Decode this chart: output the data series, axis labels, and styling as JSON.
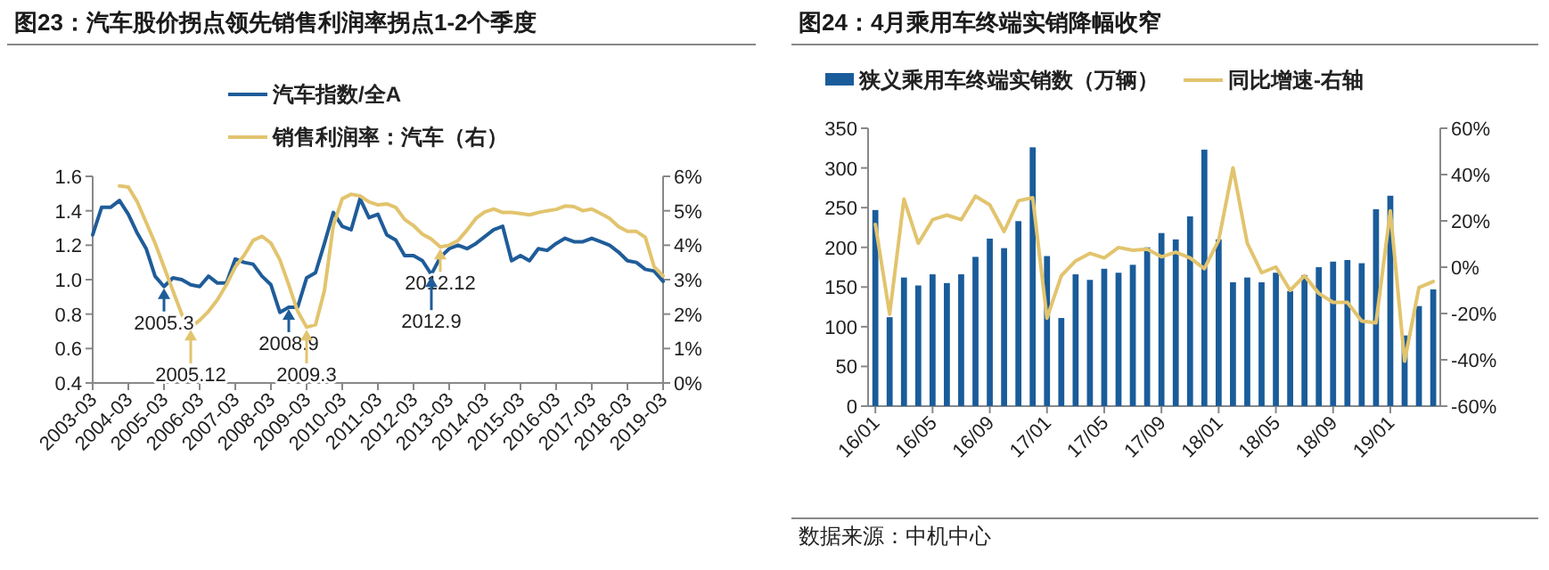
{
  "chart_data": [
    {
      "type": "line",
      "title": "图23：汽车股价拐点领先销售利润率拐点1-2个季度",
      "legend": "top",
      "x": [
        "2003-03",
        "2003-06",
        "2003-09",
        "2003-12",
        "2004-03",
        "2004-06",
        "2004-09",
        "2004-12",
        "2005-03",
        "2005-06",
        "2005-09",
        "2005-12",
        "2006-03",
        "2006-06",
        "2006-09",
        "2006-12",
        "2007-03",
        "2007-06",
        "2007-09",
        "2007-12",
        "2008-03",
        "2008-06",
        "2008-09",
        "2008-12",
        "2009-03",
        "2009-06",
        "2009-09",
        "2009-12",
        "2010-03",
        "2010-06",
        "2010-09",
        "2010-12",
        "2011-03",
        "2011-06",
        "2011-09",
        "2011-12",
        "2012-03",
        "2012-06",
        "2012-09",
        "2012-12",
        "2013-03",
        "2013-06",
        "2013-09",
        "2013-12",
        "2014-03",
        "2014-06",
        "2014-09",
        "2014-12",
        "2015-03",
        "2015-06",
        "2015-09",
        "2015-12",
        "2016-03",
        "2016-06",
        "2016-09",
        "2016-12",
        "2017-03",
        "2017-06",
        "2017-09",
        "2017-12",
        "2018-03",
        "2018-06",
        "2018-09",
        "2018-12",
        "2019-03"
      ],
      "xlim": [
        "2003-03",
        "2019-03"
      ],
      "xticks": [
        "2003-03",
        "2004-03",
        "2005-03",
        "2006-03",
        "2007-03",
        "2008-03",
        "2009-03",
        "2010-03",
        "2011-03",
        "2012-03",
        "2013-03",
        "2014-03",
        "2015-03",
        "2016-03",
        "2017-03",
        "2018-03",
        "2019-03"
      ],
      "ylim": [
        0.4,
        1.6
      ],
      "yticks": [
        {
          "value": 0.4,
          "label": "0.4"
        },
        {
          "value": 0.6,
          "label": "0.6"
        },
        {
          "value": 0.8,
          "label": "0.8"
        },
        {
          "value": 1.0,
          "label": "1.0"
        },
        {
          "value": 1.2,
          "label": "1.2"
        },
        {
          "value": 1.4,
          "label": "1.4"
        },
        {
          "value": 1.6,
          "label": "1.6"
        }
      ],
      "y2lim": [
        0,
        6
      ],
      "y2ticks": [
        {
          "value": 0,
          "label": "0%"
        },
        {
          "value": 1,
          "label": "1%"
        },
        {
          "value": 2,
          "label": "2%"
        },
        {
          "value": 3,
          "label": "3%"
        },
        {
          "value": 4,
          "label": "4%"
        },
        {
          "value": 5,
          "label": "5%"
        },
        {
          "value": 6,
          "label": "6%"
        }
      ],
      "series": [
        {
          "name": "汽车指数/全A",
          "color": "#1f5c99",
          "values": [
            1.26,
            1.42,
            1.42,
            1.46,
            1.38,
            1.27,
            1.18,
            1.02,
            0.96,
            1.01,
            1.0,
            0.97,
            0.96,
            1.02,
            0.98,
            0.98,
            1.12,
            1.1,
            1.09,
            1.02,
            0.97,
            0.81,
            0.84,
            0.84,
            1.01,
            1.04,
            1.21,
            1.39,
            1.31,
            1.29,
            1.47,
            1.36,
            1.38,
            1.26,
            1.23,
            1.14,
            1.14,
            1.11,
            1.03,
            1.13,
            1.18,
            1.2,
            1.18,
            1.21,
            1.25,
            1.29,
            1.31,
            1.11,
            1.14,
            1.11,
            1.18,
            1.17,
            1.21,
            1.24,
            1.22,
            1.22,
            1.24,
            1.22,
            1.2,
            1.16,
            1.11,
            1.1,
            1.06,
            1.05,
            0.99
          ]
        },
        {
          "name": "销售利润率：汽车（右）",
          "color": "#e2c46e",
          "axis": "y2",
          "values": [
            null,
            null,
            null,
            5.72,
            5.69,
            5.26,
            4.66,
            4.06,
            3.37,
            2.68,
            1.99,
            1.62,
            1.82,
            2.08,
            2.42,
            2.85,
            3.37,
            3.71,
            4.14,
            4.26,
            4.06,
            3.58,
            2.85,
            2.08,
            1.62,
            1.69,
            2.68,
            4.57,
            5.35,
            5.48,
            5.43,
            5.26,
            5.17,
            5.2,
            5.1,
            4.75,
            4.57,
            4.32,
            4.18,
            3.95,
            4.0,
            4.14,
            4.44,
            4.78,
            4.97,
            5.05,
            4.95,
            4.95,
            4.92,
            4.88,
            4.95,
            5.0,
            5.04,
            5.14,
            5.12,
            5.0,
            5.05,
            4.92,
            4.78,
            4.54,
            4.4,
            4.4,
            4.23,
            3.37,
            3.11
          ]
        }
      ],
      "annotations": [
        {
          "text": "2005.3",
          "x": "2005-03",
          "y": 0.96
        },
        {
          "text": "2005.12",
          "x": "2005-12",
          "y": 0.72
        },
        {
          "text": "2008.9",
          "x": "2008-09",
          "y": 0.84
        },
        {
          "text": "2009.3",
          "x": "2009-03",
          "y": 0.72
        },
        {
          "text": "2012.12",
          "x": "2012-12",
          "y": 1.19
        },
        {
          "text": "2012.9",
          "x": "2012-09",
          "y": 1.03
        }
      ]
    },
    {
      "type": "bar",
      "title": "图24：4月乘用车终端实销降幅收窄",
      "legend": "top",
      "x": [
        "2016-01",
        "2016-02",
        "2016-03",
        "2016-04",
        "2016-05",
        "2016-06",
        "2016-07",
        "2016-08",
        "2016-09",
        "2016-10",
        "2016-11",
        "2016-12",
        "2017-01",
        "2017-02",
        "2017-03",
        "2017-04",
        "2017-05",
        "2017-06",
        "2017-07",
        "2017-08",
        "2017-09",
        "2017-10",
        "2017-11",
        "2017-12",
        "2018-01",
        "2018-02",
        "2018-03",
        "2018-04",
        "2018-05",
        "2018-06",
        "2018-07",
        "2018-08",
        "2018-09",
        "2018-10",
        "2018-11",
        "2018-12",
        "2019-01",
        "2019-02",
        "2019-03",
        "2019-04"
      ],
      "xlim": [
        "2015-12-16",
        "2019-04-16"
      ],
      "xticks": [
        {
          "value": "2016-01",
          "label": "16/01"
        },
        {
          "value": "2016-05",
          "label": "16/05"
        },
        {
          "value": "2016-09",
          "label": "16/09"
        },
        {
          "value": "2017-01",
          "label": "17/01"
        },
        {
          "value": "2017-05",
          "label": "17/05"
        },
        {
          "value": "2017-09",
          "label": "17/09"
        },
        {
          "value": "2018-01",
          "label": "18/01"
        },
        {
          "value": "2018-05",
          "label": "18/05"
        },
        {
          "value": "2018-09",
          "label": "18/09"
        },
        {
          "value": "2019-01",
          "label": "19/01"
        }
      ],
      "ylim": [
        0,
        350
      ],
      "yticks": [
        0,
        50,
        100,
        150,
        200,
        250,
        300,
        350
      ],
      "y2lim": [
        -60,
        60
      ],
      "y2ticks": [
        {
          "value": -60,
          "label": "-60%"
        },
        {
          "value": -40,
          "label": "-40%"
        },
        {
          "value": -20,
          "label": "-20%"
        },
        {
          "value": 0,
          "label": "0%"
        },
        {
          "value": 20,
          "label": "20%"
        },
        {
          "value": 40,
          "label": "40%"
        },
        {
          "value": 60,
          "label": "60%"
        }
      ],
      "series": [
        {
          "name": "狭义乘用车终端实销数（万辆）",
          "color": "#1a5c9a",
          "values": [
            247,
            112,
            162,
            152,
            166,
            155,
            166,
            188,
            211,
            199,
            233,
            326,
            189,
            111,
            166,
            159,
            173,
            168,
            178,
            200,
            218,
            210,
            239,
            323,
            210,
            156,
            162,
            156,
            168,
            145,
            165,
            175,
            182,
            184,
            180,
            248,
            265,
            89,
            126,
            147
          ]
        },
        {
          "name": "同比增速-右轴",
          "color": "#e2c46e",
          "type": "line",
          "axis": "y2",
          "values": [
            18.5,
            -20.3,
            29.4,
            10.3,
            20.5,
            22.5,
            20.5,
            30.7,
            26.9,
            15.4,
            28.7,
            30,
            -22,
            -3.7,
            2.7,
            6,
            4,
            8.5,
            7.3,
            7.8,
            4.5,
            6.5,
            4,
            -0.6,
            11.6,
            42.9,
            10.3,
            -2.4,
            0.1,
            -10,
            -3.7,
            -11.3,
            -15.2,
            -15.2,
            -23.3,
            -24,
            24.3,
            -40.6,
            -8.8,
            -6.2
          ]
        }
      ],
      "annotations": [
        "数据来源：中机中心"
      ]
    }
  ]
}
